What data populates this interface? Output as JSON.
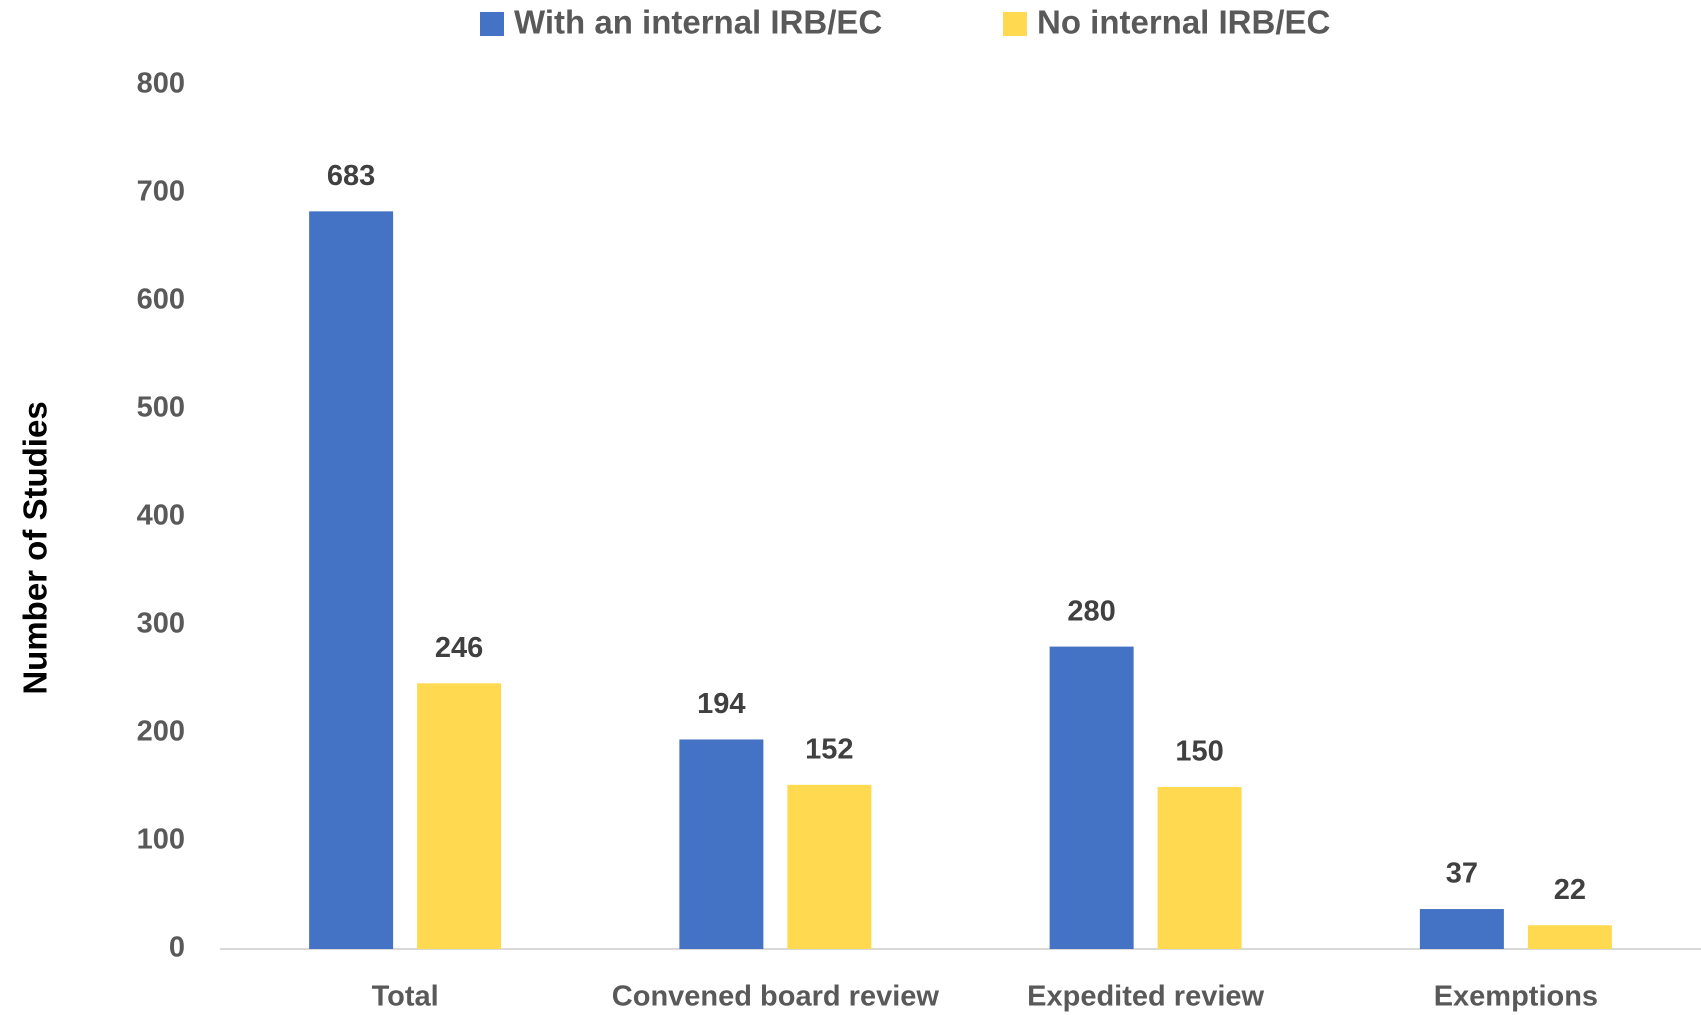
{
  "chart_data": {
    "type": "bar",
    "y_label": "Number of Studies",
    "categories": [
      "Total",
      "Convened board review",
      "Expedited review",
      "Exemptions"
    ],
    "series": [
      {
        "name": "With an internal IRB/EC",
        "color": "#4472c4",
        "values": [
          683,
          194,
          280,
          37
        ]
      },
      {
        "name": "No internal IRB/EC",
        "color": "#ffd94f",
        "values": [
          246,
          152,
          150,
          22
        ]
      }
    ],
    "ylim": [
      0,
      800
    ],
    "yticks": [
      0,
      100,
      200,
      300,
      400,
      500,
      600,
      700,
      800
    ],
    "grid": false,
    "legend": "top"
  }
}
